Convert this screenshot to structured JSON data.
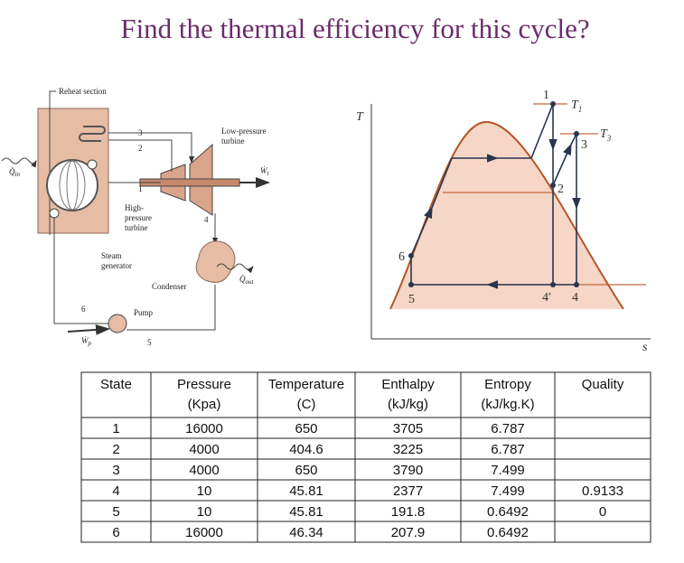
{
  "title": "Find the thermal efficiency for this cycle?",
  "schematic": {
    "labels": {
      "reheat": "Reheat section",
      "lp_turbine": [
        "Low-pressure",
        "turbine"
      ],
      "hp_turbine": [
        "High-",
        "pressure",
        "turbine"
      ],
      "generator": [
        "Steam",
        "generator"
      ],
      "condenser": "Condenser",
      "pump": "Pump"
    },
    "symbols": {
      "q_in": {
        "symbol": "Q̇",
        "sub": "in"
      },
      "w_t": {
        "symbol": "Ẇ",
        "sub": "t"
      },
      "q_out": {
        "symbol": "Q̇",
        "sub": "out"
      },
      "w_p": {
        "symbol": "Ẇ",
        "sub": "p"
      }
    },
    "states": [
      "1",
      "2",
      "3",
      "4",
      "5",
      "6"
    ]
  },
  "ts_diagram": {
    "y_axis": "T",
    "x_axis": "s",
    "states": [
      "1",
      "2",
      "3",
      "4′",
      "4",
      "5",
      "6"
    ],
    "temps": [
      {
        "symbol": "T",
        "sub": "1"
      },
      {
        "symbol": "T",
        "sub": "3"
      }
    ]
  },
  "table": {
    "header": [
      [
        "State"
      ],
      [
        "Pressure",
        "(Kpa)"
      ],
      [
        "Temperature",
        "(C)"
      ],
      [
        "Enthalpy",
        "(kJ/kg)"
      ],
      [
        "Entropy",
        "(kJ/kg.K)"
      ],
      [
        "Quality"
      ]
    ],
    "rows": [
      [
        "1",
        "16000",
        "650",
        "3705",
        "6.787"
      ],
      [
        "2",
        "4000",
        "404.6",
        "3225",
        "6.787"
      ],
      [
        "3",
        "4000",
        "650",
        "3790",
        "7.499"
      ],
      [
        "4",
        "10",
        "45.81",
        "2377",
        "7.499",
        "0.9133"
      ],
      [
        "5",
        "10",
        "45.81",
        "191.8",
        "0.6492",
        "0"
      ],
      [
        "6",
        "16000",
        "46.34",
        "207.9",
        "0.6492"
      ]
    ]
  }
}
